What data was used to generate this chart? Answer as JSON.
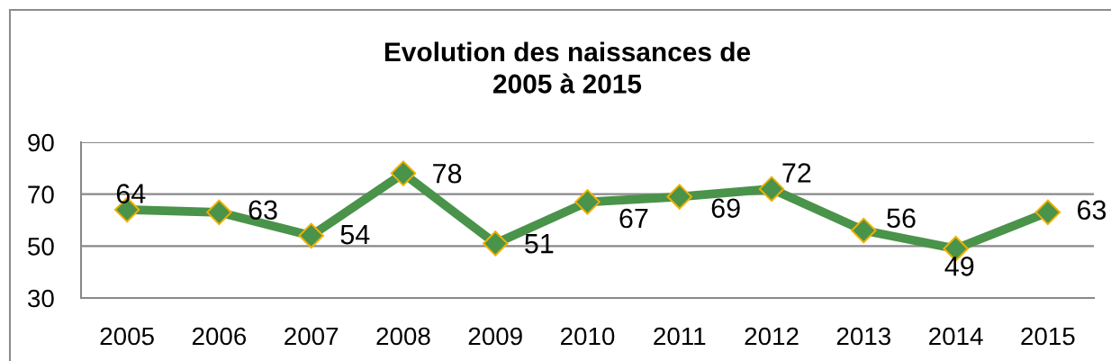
{
  "chart_data": {
    "type": "line",
    "title": "Evolution des naissances de\n2005 à 2015",
    "categories": [
      "2005",
      "2006",
      "2007",
      "2008",
      "2009",
      "2010",
      "2011",
      "2012",
      "2013",
      "2014",
      "2015"
    ],
    "series": [
      {
        "color": "#4a934a",
        "values": [
          64,
          63,
          54,
          78,
          51,
          67,
          69,
          72,
          56,
          49,
          63
        ]
      }
    ],
    "ylim": [
      30,
      90
    ],
    "yticks": [
      30,
      50,
      70,
      90
    ],
    "grid": "y",
    "marker": "diamond",
    "line_style": "solid",
    "data_labels": true
  }
}
